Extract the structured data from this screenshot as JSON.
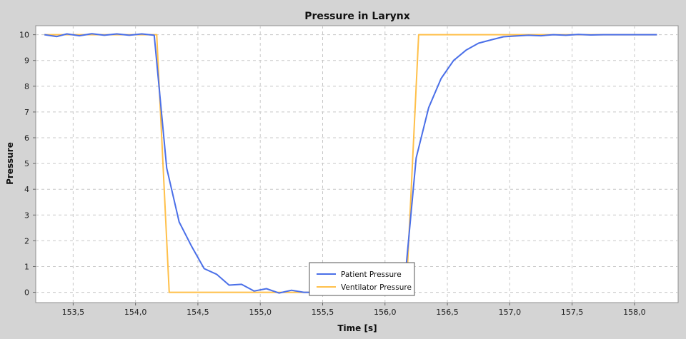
{
  "chart_data": {
    "type": "line",
    "title": "Pressure in Larynx",
    "xlabel": "Time [s]",
    "ylabel": "Pressure",
    "xlim": [
      153.2,
      158.35
    ],
    "ylim": [
      -0.4,
      10.35
    ],
    "x_ticks": [
      153.5,
      154.0,
      154.5,
      155.0,
      155.5,
      156.0,
      156.5,
      157.0,
      157.5,
      158.0
    ],
    "x_tick_labels": [
      "153,5",
      "154,0",
      "154,5",
      "155,0",
      "155,5",
      "156,0",
      "156,5",
      "157,0",
      "157,5",
      "158,0"
    ],
    "y_ticks": [
      0,
      1,
      2,
      3,
      4,
      5,
      6,
      7,
      8,
      9,
      10
    ],
    "y_tick_labels": [
      "0",
      "1",
      "2",
      "3",
      "4",
      "5",
      "6",
      "7",
      "8",
      "9",
      "10"
    ],
    "grid": true,
    "legend_position": "bottom-center",
    "background": "#ffffff",
    "series": [
      {
        "name": "Patient Pressure",
        "color": "#4a6fe8",
        "x": [
          153.27,
          153.37,
          153.45,
          153.55,
          153.65,
          153.75,
          153.85,
          153.95,
          154.05,
          154.15,
          154.25,
          154.35,
          154.45,
          154.55,
          154.65,
          154.75,
          154.85,
          154.95,
          155.05,
          155.15,
          155.25,
          155.35,
          156.15,
          156.25,
          156.35,
          156.45,
          156.55,
          156.65,
          156.75,
          156.85,
          156.95,
          157.05,
          157.15,
          157.25,
          157.35,
          157.45,
          157.55,
          157.65,
          157.75,
          157.85,
          157.95,
          158.05,
          158.18
        ],
        "y": [
          10.0,
          9.93,
          10.03,
          9.96,
          10.04,
          9.98,
          10.03,
          9.98,
          10.03,
          9.98,
          4.82,
          2.73,
          1.78,
          0.92,
          0.7,
          0.28,
          0.31,
          0.05,
          0.14,
          -0.03,
          0.08,
          0.0,
          0.0,
          5.22,
          7.17,
          8.3,
          9.0,
          9.4,
          9.67,
          9.8,
          9.92,
          9.95,
          9.98,
          9.96,
          10.0,
          9.98,
          10.01,
          9.99,
          10.0,
          10.0,
          10.0,
          10.0,
          10.0
        ]
      },
      {
        "name": "Ventilator Pressure",
        "color": "#ffc04a",
        "x": [
          153.27,
          154.17,
          154.27,
          156.17,
          156.27,
          158.18
        ],
        "y": [
          10.0,
          10.0,
          0.0,
          0.0,
          10.0,
          10.0
        ]
      }
    ]
  }
}
